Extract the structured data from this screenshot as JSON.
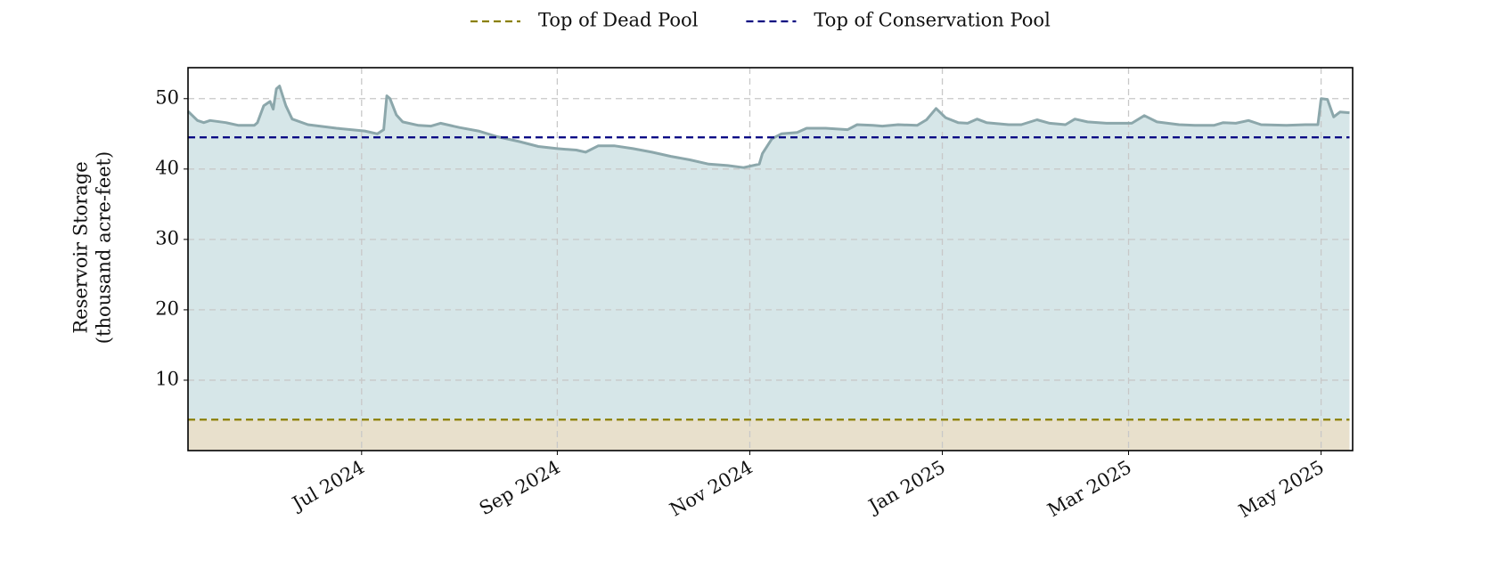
{
  "chart_data": {
    "type": "area",
    "ylabel": [
      "Reservoir Storage",
      "(thousand acre-feet)"
    ],
    "x": [
      "2024-05-07",
      "2024-05-10",
      "2024-05-12",
      "2024-05-14",
      "2024-05-19",
      "2024-05-23",
      "2024-05-28",
      "2024-05-29",
      "2024-05-31",
      "2024-06-02",
      "2024-06-03",
      "2024-06-04",
      "2024-06-05",
      "2024-06-07",
      "2024-06-09",
      "2024-06-14",
      "2024-06-23",
      "2024-07-02",
      "2024-07-06",
      "2024-07-08",
      "2024-07-09",
      "2024-07-10",
      "2024-07-12",
      "2024-07-14",
      "2024-07-19",
      "2024-07-23",
      "2024-07-26",
      "2024-08-01",
      "2024-08-07",
      "2024-08-13",
      "2024-08-20",
      "2024-08-26",
      "2024-09-01",
      "2024-09-07",
      "2024-09-10",
      "2024-09-14",
      "2024-09-19",
      "2024-09-25",
      "2024-10-01",
      "2024-10-07",
      "2024-10-13",
      "2024-10-19",
      "2024-10-25",
      "2024-10-30",
      "2024-11-04",
      "2024-11-05",
      "2024-11-08",
      "2024-11-11",
      "2024-11-16",
      "2024-11-19",
      "2024-11-25",
      "2024-12-02",
      "2024-12-05",
      "2024-12-10",
      "2024-12-13",
      "2024-12-18",
      "2024-12-24",
      "2024-12-27",
      "2024-12-30",
      "2025-01-02",
      "2025-01-06",
      "2025-01-09",
      "2025-01-12",
      "2025-01-15",
      "2025-01-22",
      "2025-01-26",
      "2025-01-31",
      "2025-02-04",
      "2025-02-09",
      "2025-02-12",
      "2025-02-16",
      "2025-02-22",
      "2025-03-02",
      "2025-03-06",
      "2025-03-10",
      "2025-03-17",
      "2025-03-22",
      "2025-03-28",
      "2025-03-31",
      "2025-04-04",
      "2025-04-08",
      "2025-04-12",
      "2025-04-20",
      "2025-04-26",
      "2025-04-30",
      "2025-05-01",
      "2025-05-03",
      "2025-05-05",
      "2025-05-07",
      "2025-05-10"
    ],
    "series": [
      {
        "color": "#8ca7ab",
        "fill": "#d6e6e8",
        "values": [
          48.2,
          46.9,
          46.6,
          46.9,
          46.6,
          46.2,
          46.2,
          46.6,
          49.0,
          49.6,
          48.5,
          51.4,
          51.8,
          49.0,
          47.1,
          46.3,
          45.8,
          45.4,
          45.0,
          45.6,
          50.4,
          50.0,
          47.7,
          46.7,
          46.2,
          46.1,
          46.5,
          45.9,
          45.4,
          44.6,
          43.9,
          43.2,
          42.9,
          42.7,
          42.4,
          43.3,
          43.3,
          42.9,
          42.4,
          41.8,
          41.3,
          40.7,
          40.5,
          40.2,
          40.7,
          42.2,
          44.3,
          45.0,
          45.2,
          45.8,
          45.8,
          45.6,
          46.3,
          46.2,
          46.1,
          46.3,
          46.2,
          47.0,
          48.6,
          47.3,
          46.6,
          46.5,
          47.1,
          46.6,
          46.3,
          46.3,
          47.0,
          46.5,
          46.3,
          47.1,
          46.7,
          46.5,
          46.5,
          47.6,
          46.7,
          46.3,
          46.2,
          46.2,
          46.6,
          46.5,
          46.9,
          46.3,
          46.2,
          46.3,
          46.3,
          50.0,
          49.9,
          47.4,
          48.1,
          48.0
        ]
      }
    ],
    "hlines": [
      {
        "name": "Top of Dead Pool",
        "value": 4.4,
        "color": "#8b8000",
        "fill": "#e8e0cc"
      },
      {
        "name": "Top of Conservation Pool",
        "value": 44.5,
        "color": "#000080"
      }
    ],
    "xlim": [
      "2024-05-07",
      "2025-05-11"
    ],
    "xticks": [
      {
        "value": "2024-07-01",
        "label": "Jul 2024"
      },
      {
        "value": "2024-09-01",
        "label": "Sep 2024"
      },
      {
        "value": "2024-11-01",
        "label": "Nov 2024"
      },
      {
        "value": "2025-01-01",
        "label": "Jan 2025"
      },
      {
        "value": "2025-03-01",
        "label": "Mar 2025"
      },
      {
        "value": "2025-05-01",
        "label": "May 2025"
      }
    ],
    "ylim": [
      0,
      54.4
    ],
    "yticks": [
      10,
      20,
      30,
      40,
      50
    ],
    "grid": true,
    "legend": "top"
  }
}
